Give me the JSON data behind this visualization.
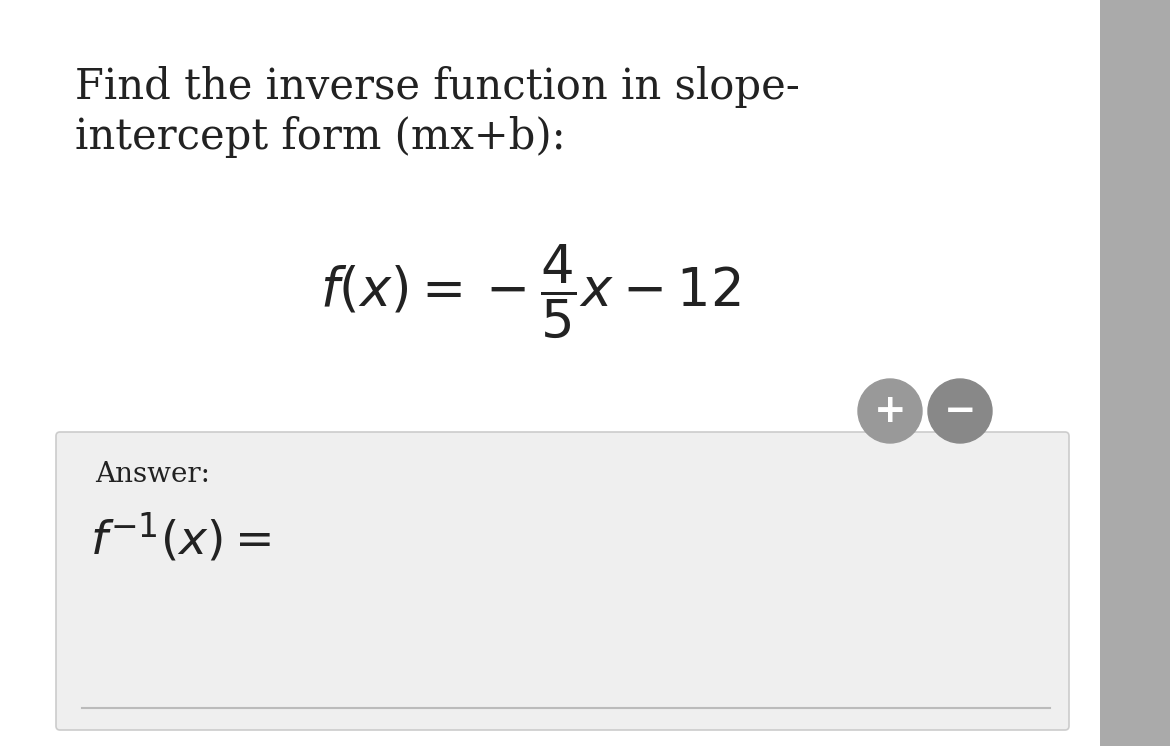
{
  "bg_outer_color": "#c8c8c8",
  "bg_color": "#ffffff",
  "answer_box_color": "#efefef",
  "answer_box_border_color": "#cccccc",
  "title_text_line1": "Find the inverse function in slope-",
  "title_text_line2": "intercept form (mx+b):",
  "text_color": "#222222",
  "title_fontsize": 30,
  "function_fontsize": 38,
  "answer_label_fontsize": 20,
  "answer_latex_fontsize": 34,
  "button_color": "#999999",
  "button_color2": "#888888"
}
